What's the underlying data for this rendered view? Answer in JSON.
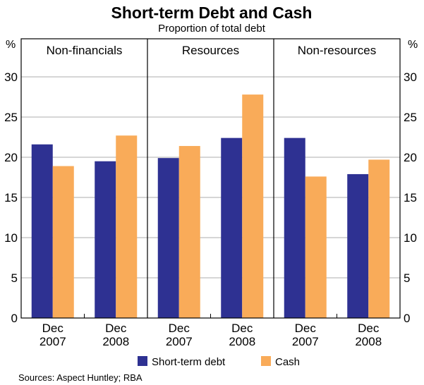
{
  "chart_data": {
    "type": "bar",
    "title": "Short-term Debt and Cash",
    "subtitle": "Proportion of total debt",
    "ylabel_left": "%",
    "ylabel_right": "%",
    "ylim": [
      0,
      30
    ],
    "yticks": [
      "0",
      "5",
      "10",
      "15",
      "20",
      "25",
      "30"
    ],
    "panels": [
      {
        "name": "Non-financials",
        "categories": [
          [
            "Dec",
            "2007"
          ],
          [
            "Dec",
            "2008"
          ]
        ],
        "series": [
          {
            "name": "Short-term debt",
            "values": [
              21.6,
              19.5
            ]
          },
          {
            "name": "Cash",
            "values": [
              18.9,
              22.7
            ]
          }
        ]
      },
      {
        "name": "Resources",
        "categories": [
          [
            "Dec",
            "2007"
          ],
          [
            "Dec",
            "2008"
          ]
        ],
        "series": [
          {
            "name": "Short-term debt",
            "values": [
              19.9,
              22.4
            ]
          },
          {
            "name": "Cash",
            "values": [
              21.4,
              27.8
            ]
          }
        ]
      },
      {
        "name": "Non-resources",
        "categories": [
          [
            "Dec",
            "2007"
          ],
          [
            "Dec",
            "2008"
          ]
        ],
        "series": [
          {
            "name": "Short-term debt",
            "values": [
              22.4,
              17.9
            ]
          },
          {
            "name": "Cash",
            "values": [
              17.6,
              19.7
            ]
          }
        ]
      }
    ],
    "legend": [
      {
        "name": "Short-term debt",
        "color": "#2e3192"
      },
      {
        "name": "Cash",
        "color": "#f9ab59"
      }
    ],
    "legend_position": "bottom",
    "source": "Sources: Aspect Huntley; RBA"
  }
}
